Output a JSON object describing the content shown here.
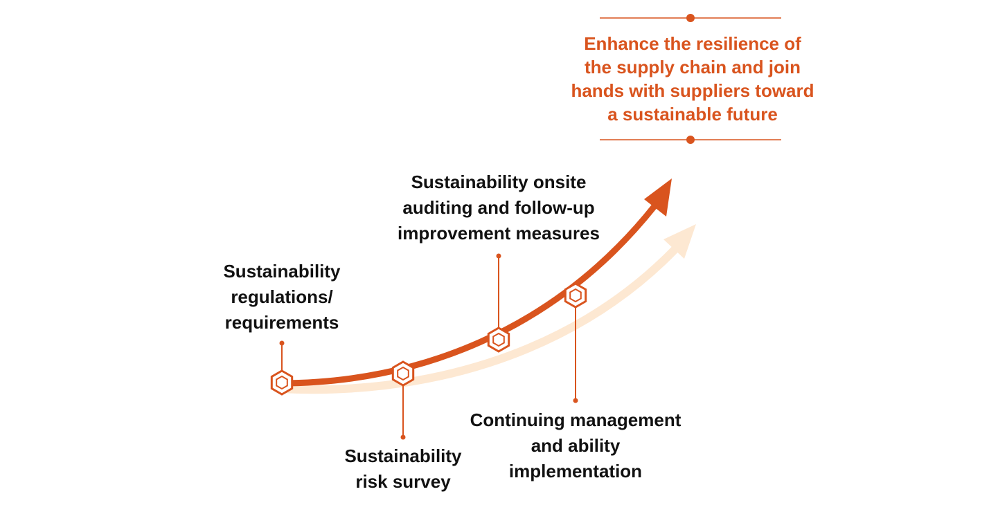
{
  "colors": {
    "accent": "#D9541E",
    "accent_light": "#FDE8D2",
    "text": "#111111"
  },
  "goal": {
    "text": "Enhance the resilience of\nthe supply chain and join\nhands with suppliers toward\na sustainable future"
  },
  "milestones": [
    {
      "id": "regulations",
      "label": "Sustainability\nregulations/\nrequirements"
    },
    {
      "id": "risk_survey",
      "label": "Sustainability\nrisk survey"
    },
    {
      "id": "onsite_auditing",
      "label": "Sustainability onsite\nauditing and follow-up\nimprovement measures"
    },
    {
      "id": "continuing_management",
      "label": "Continuing management\nand ability\nimplementation"
    }
  ],
  "icons": {
    "node": "hexagon-node-icon",
    "arrow": "arrow-head-icon"
  }
}
